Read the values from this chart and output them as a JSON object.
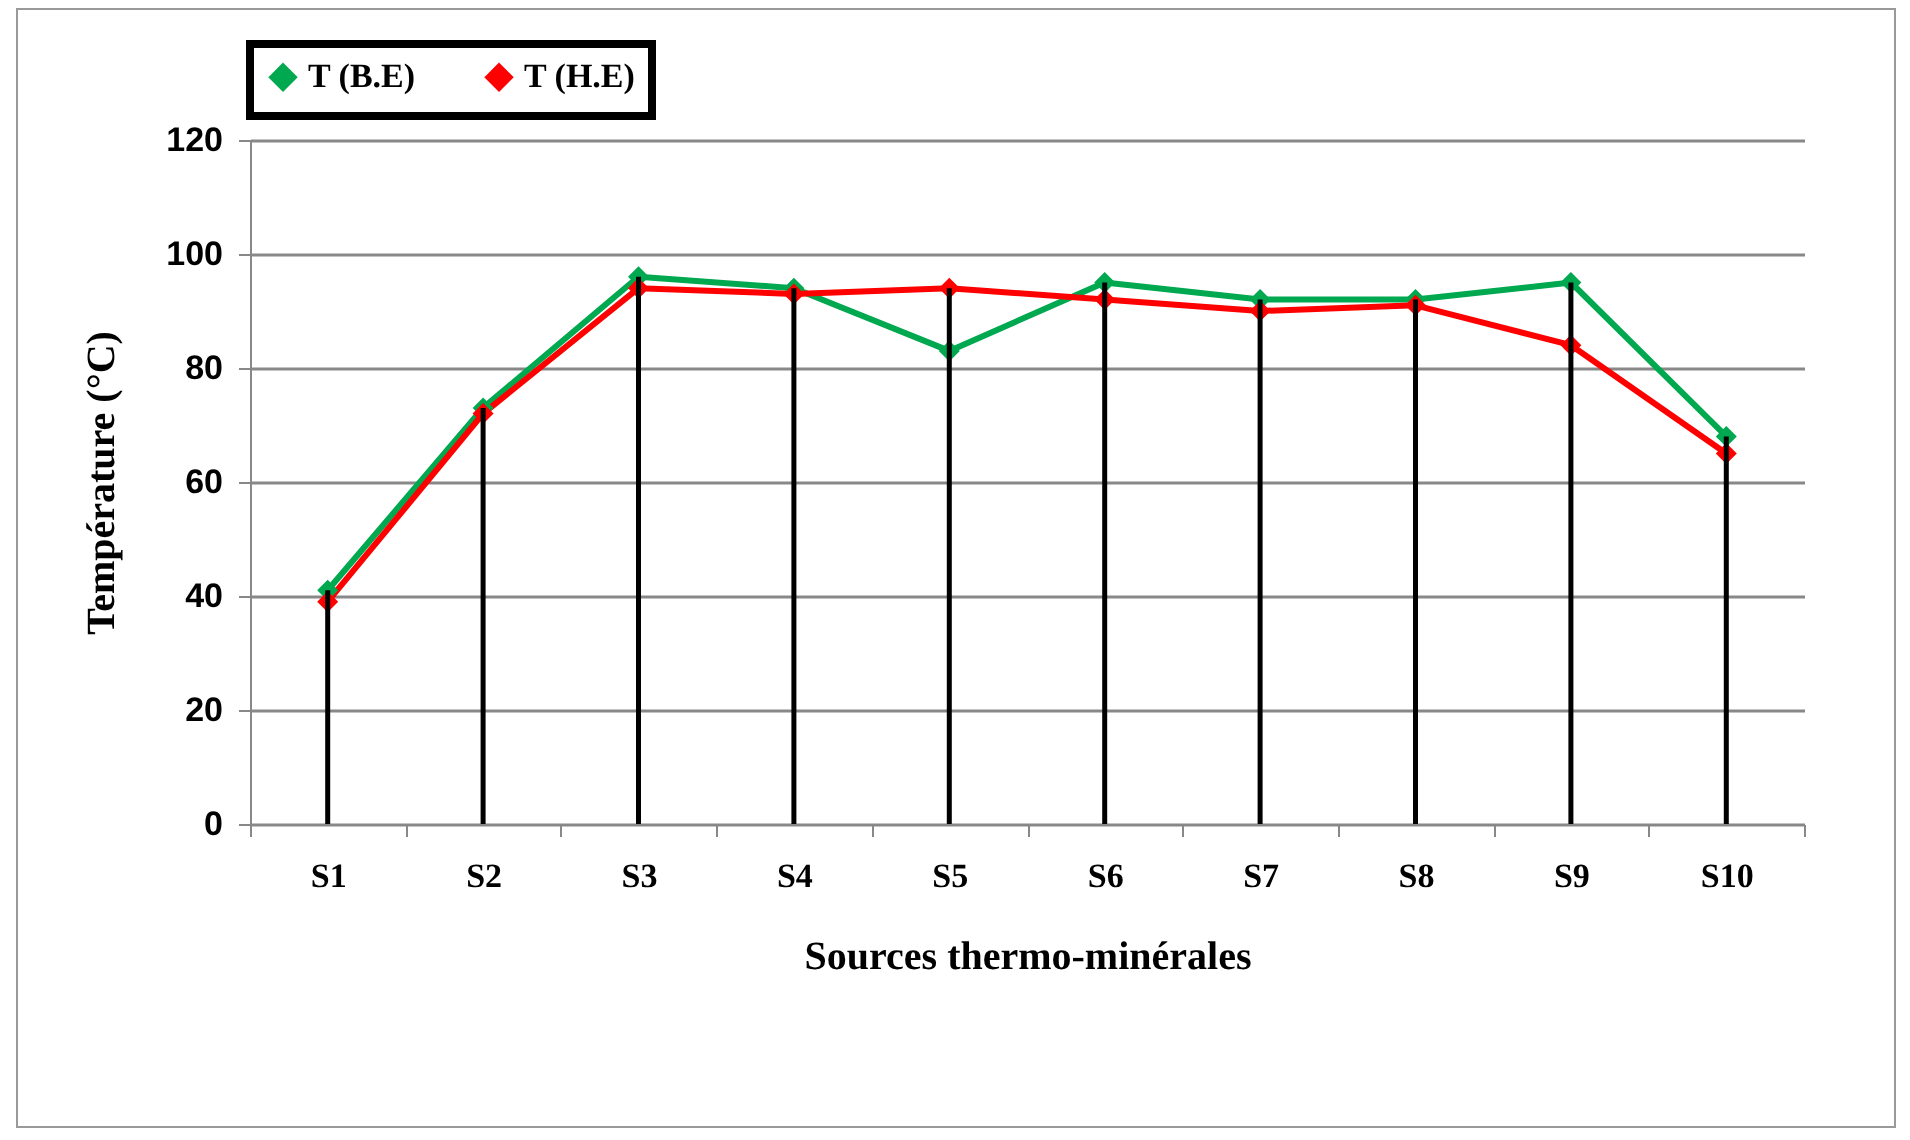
{
  "chart_data": {
    "type": "line",
    "xlabel": "Sources  thermo-minérales",
    "ylabel": "Température (°C)",
    "categories": [
      "S1",
      "S2",
      "S3",
      "S4",
      "S5",
      "S6",
      "S7",
      "S8",
      "S9",
      "S10"
    ],
    "series": [
      {
        "name": "T (B.E)",
        "color": "#00a84f",
        "values": [
          41,
          73,
          96,
          94,
          83,
          95,
          92,
          92,
          95,
          68
        ]
      },
      {
        "name": "T (H.E)",
        "color": "#ff0000",
        "values": [
          39,
          72,
          94,
          93,
          94,
          92,
          90,
          91,
          84,
          65
        ]
      },
      {
        "type": "bar",
        "color": "#000000",
        "values": [
          41,
          73,
          96,
          94,
          94,
          95,
          92,
          92,
          95,
          68
        ]
      }
    ],
    "ylim": [
      0,
      120
    ],
    "yticks": [
      0,
      20,
      40,
      60,
      80,
      100,
      120
    ],
    "grid": "y",
    "legend": "top",
    "marker": "diamond",
    "line_style": "solid"
  }
}
